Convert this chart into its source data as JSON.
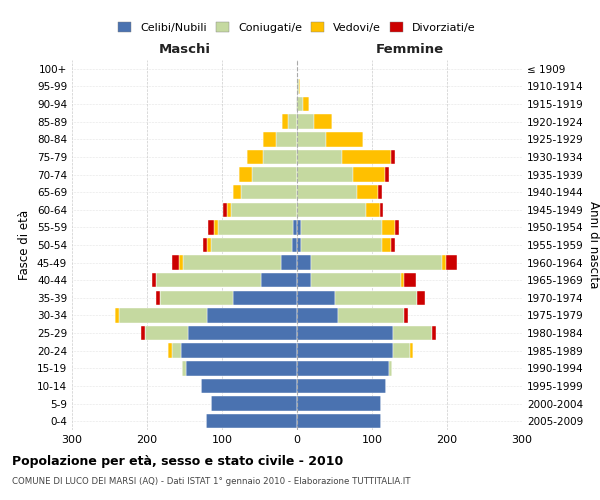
{
  "age_groups": [
    "0-4",
    "5-9",
    "10-14",
    "15-19",
    "20-24",
    "25-29",
    "30-34",
    "35-39",
    "40-44",
    "45-49",
    "50-54",
    "55-59",
    "60-64",
    "65-69",
    "70-74",
    "75-79",
    "80-84",
    "85-89",
    "90-94",
    "95-99",
    "100+"
  ],
  "birth_years": [
    "2005-2009",
    "2000-2004",
    "1995-1999",
    "1990-1994",
    "1985-1989",
    "1980-1984",
    "1975-1979",
    "1970-1974",
    "1965-1969",
    "1960-1964",
    "1955-1959",
    "1950-1954",
    "1945-1949",
    "1940-1944",
    "1935-1939",
    "1930-1934",
    "1925-1929",
    "1920-1924",
    "1915-1919",
    "1910-1914",
    "≤ 1909"
  ],
  "colors": {
    "celibi": "#4a72b0",
    "coniugati": "#c5d9a0",
    "vedovi": "#ffc000",
    "divorziati": "#cc0000"
  },
  "maschi": {
    "celibi": [
      122,
      115,
      128,
      148,
      155,
      145,
      120,
      85,
      48,
      22,
      7,
      5,
      0,
      0,
      0,
      0,
      0,
      0,
      0,
      0,
      0
    ],
    "coniugati": [
      0,
      0,
      0,
      5,
      12,
      58,
      118,
      98,
      140,
      130,
      108,
      100,
      88,
      75,
      60,
      45,
      28,
      12,
      2,
      0,
      0
    ],
    "vedovi": [
      0,
      0,
      0,
      0,
      5,
      0,
      5,
      0,
      0,
      5,
      5,
      6,
      6,
      10,
      18,
      22,
      18,
      8,
      0,
      0,
      0
    ],
    "divorziati": [
      0,
      0,
      0,
      0,
      0,
      5,
      0,
      5,
      5,
      10,
      5,
      8,
      5,
      0,
      0,
      0,
      0,
      0,
      0,
      0,
      0
    ]
  },
  "femmine": {
    "celibi": [
      112,
      112,
      118,
      122,
      128,
      128,
      55,
      50,
      18,
      18,
      5,
      5,
      0,
      0,
      0,
      0,
      0,
      0,
      0,
      0,
      0
    ],
    "coniugati": [
      0,
      0,
      0,
      5,
      22,
      52,
      88,
      110,
      120,
      175,
      108,
      108,
      92,
      80,
      75,
      60,
      38,
      22,
      8,
      2,
      0
    ],
    "vedovi": [
      0,
      0,
      0,
      0,
      5,
      0,
      0,
      0,
      5,
      5,
      12,
      18,
      18,
      28,
      42,
      65,
      50,
      25,
      8,
      2,
      0
    ],
    "divorziati": [
      0,
      0,
      0,
      0,
      0,
      5,
      5,
      10,
      15,
      15,
      5,
      5,
      5,
      5,
      5,
      5,
      0,
      0,
      0,
      0,
      0
    ]
  },
  "title": "Popolazione per età, sesso e stato civile - 2010",
  "subtitle": "COMUNE DI LUCO DEI MARSI (AQ) - Dati ISTAT 1° gennaio 2010 - Elaborazione TUTTITALIA.IT",
  "xlabel_left": "Maschi",
  "xlabel_right": "Femmine",
  "ylabel_left": "Fasce di età",
  "ylabel_right": "Anni di nascita",
  "xlim": 300,
  "bg_color": "#ffffff",
  "grid_color": "#cccccc",
  "legend_labels": [
    "Celibi/Nubili",
    "Coniugati/e",
    "Vedovi/e",
    "Divorziati/e"
  ]
}
